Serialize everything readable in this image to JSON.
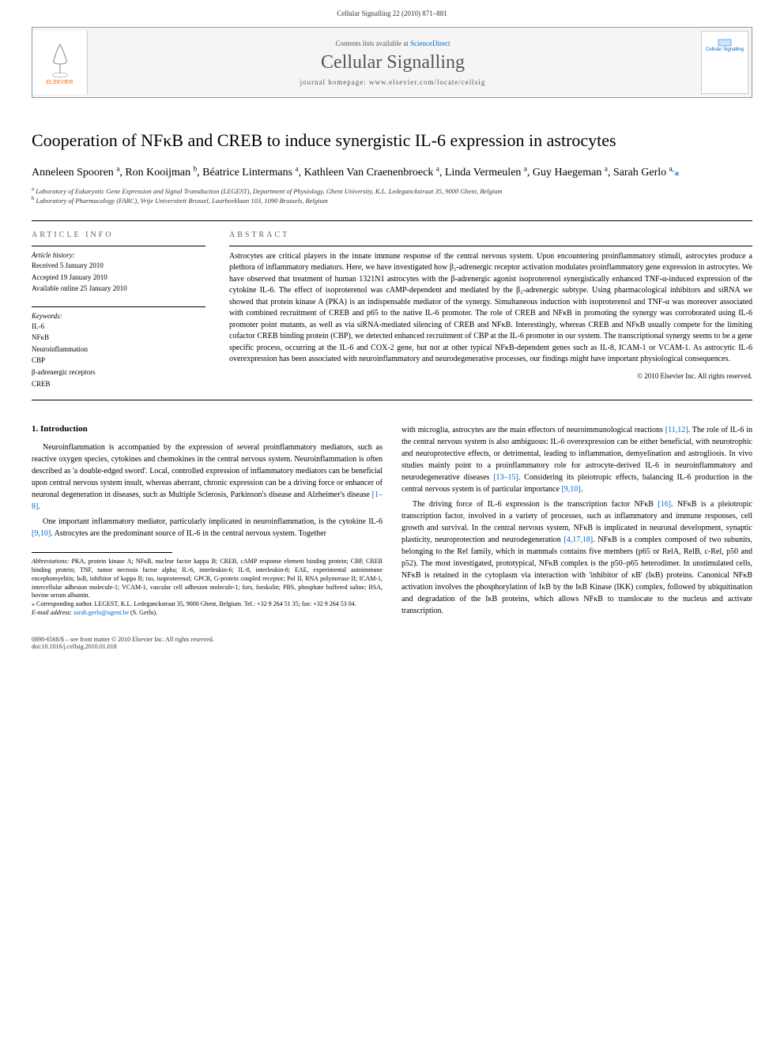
{
  "page_header": "Cellular Signalling 22 (2010) 871–881",
  "banner": {
    "elsevier": "ELSEVIER",
    "contents_prefix": "Contents lists available at ",
    "contents_link": "ScienceDirect",
    "journal_name": "Cellular Signalling",
    "homepage_prefix": "journal homepage: ",
    "homepage_url": "www.elsevier.com/locate/cellsig",
    "cover_label": "Cellular Signalling"
  },
  "title": "Cooperation of NFκB and CREB to induce synergistic IL-6 expression in astrocytes",
  "authors_html": "Anneleen Spooren <sup>a</sup>, Ron Kooijman <sup>b</sup>, Béatrice Lintermans <sup>a</sup>, Kathleen Van Craenenbroeck <sup>a</sup>, Linda Vermeulen <sup>a</sup>, Guy Haegeman <sup>a</sup>, Sarah Gerlo <sup>a,</sup>",
  "affiliations": {
    "a": "Laboratory of Eukaryotic Gene Expression and Signal Transduction (LEGEST), Department of Physiology, Ghent University, K.L. Ledeganckstraat 35, 9000 Ghent, Belgium",
    "b": "Laboratory of Pharmacology (FARC), Vrije Universiteit Brussel, Laarbeeklaan 103, 1090 Brussels, Belgium"
  },
  "article_info": {
    "heading": "ARTICLE INFO",
    "history_label": "Article history:",
    "received": "Received 5 January 2010",
    "accepted": "Accepted 19 January 2010",
    "online": "Available online 25 January 2010",
    "keywords_label": "Keywords:",
    "keywords": [
      "IL-6",
      "NFκB",
      "Neuroinflammation",
      "CBP",
      "β-adrenergic receptors",
      "CREB"
    ]
  },
  "abstract": {
    "heading": "ABSTRACT",
    "text": "Astrocytes are critical players in the innate immune response of the central nervous system. Upon encountering proinflammatory stimuli, astrocytes produce a plethora of inflammatory mediators. Here, we have investigated how β₂-adrenergic receptor activation modulates proinflammatory gene expression in astrocytes. We have observed that treatment of human 1321N1 astrocytes with the β-adrenergic agonist isoproterenol synergistically enhanced TNF-α-induced expression of the cytokine IL-6. The effect of isoproterenol was cAMP-dependent and mediated by the β₂-adrenergic subtype. Using pharmacological inhibitors and siRNA we showed that protein kinase A (PKA) is an indispensable mediator of the synergy. Simultaneous induction with isoproterenol and TNF-α was moreover associated with combined recruitment of CREB and p65 to the native IL-6 promoter. The role of CREB and NFκB in promoting the synergy was corroborated using IL-6 promoter point mutants, as well as via siRNA-mediated silencing of CREB and NFκB. Interestingly, whereas CREB and NFκB usually compete for the limiting cofactor CREB binding protein (CBP), we detected enhanced recruitment of CBP at the IL-6 promoter in our system. The transcriptional synergy seems to be a gene specific process, occurring at the IL-6 and COX-2 gene, but not at other typical NFκB-dependent genes such as IL-8, ICAM-1 or VCAM-1. As astrocytic IL-6 overexpression has been associated with neuroinflammatory and neurodegenerative processes, our findings might have important physiological consequences.",
    "copyright": "© 2010 Elsevier Inc. All rights reserved."
  },
  "body": {
    "section_heading": "1. Introduction",
    "col1_p1": "Neuroinflammation is accompanied by the expression of several proinflammatory mediators, such as reactive oxygen species, cytokines and chemokines in the central nervous system. Neuroinflammation is often described as 'a double-edged sword'. Local, controlled expression of inflammatory mediators can be beneficial upon central nervous system insult, whereas aberrant, chronic expression can be a driving force or enhancer of neuronal degeneration in diseases, such as Multiple Sclerosis, Parkinson's disease and Alzheimer's disease ",
    "col1_p1_ref": "[1–8]",
    "col1_p1_end": ".",
    "col1_p2": "One important inflammatory mediator, particularly implicated in neuroinflammation, is the cytokine IL-6 ",
    "col1_p2_ref": "[9,10]",
    "col1_p2_end": ". Astrocytes are the predominant source of IL-6 in the central nervous system. Together",
    "col2_p1": "with microglia, astrocytes are the main effectors of neuroimmunological reactions ",
    "col2_p1_ref1": "[11,12]",
    "col2_p1_mid": ". The role of IL-6 in the central nervous system is also ambiguous: IL-6 overexpression can be either beneficial, with neurotrophic and neuroprotective effects, or detrimental, leading to inflammation, demyelination and astrogliosis. In vivo studies mainly point to a proinflammatory role for astrocyte-derived IL-6 in neuroinflammatory and neurodegenerative diseases ",
    "col2_p1_ref2": "[13–15]",
    "col2_p1_mid2": ". Considering its pleiotropic effects, balancing IL-6 production in the central nervous system is of particular importance ",
    "col2_p1_ref3": "[9,10]",
    "col2_p1_end": ".",
    "col2_p2": "The driving force of IL-6 expression is the transcription factor NFκB ",
    "col2_p2_ref1": "[16]",
    "col2_p2_mid": ". NFκB is a pleiotropic transcription factor, involved in a variety of processes, such as inflammatory and immune responses, cell growth and survival. In the central nervous system, NFκB is implicated in neuronal development, synaptic plasticity, neuroprotection and neurodegeneration ",
    "col2_p2_ref2": "[4,17,18]",
    "col2_p2_end": ". NFκB is a complex composed of two subunits, belonging to the Rel family, which in mammals contains five members (p65 or RelA, RelB, c-Rel, p50 and p52). The most investigated, prototypical, NFκB complex is the p50–p65 heterodimer. In unstimulated cells, NFκB is retained in the cytoplasm via interaction with 'inhibitor of κB' (IκB) proteins. Canonical NFκB activation involves the phosphorylation of IκB by the IκB Kinase (IKK) complex, followed by ubiquitination and degradation of the IκB proteins, which allows NFκB to translocate to the nucleus and activate transcription."
  },
  "footnotes": {
    "abbrev_label": "Abbreviations:",
    "abbrev": " PKA, protein kinase A; NFκB, nuclear factor kappa B; CREB, cAMP response element binding protein; CBP, CREB binding protein; TNF, tumor necrosis factor alpha; IL-6, interleukin-6; IL-8, interleukin-8; EAE, experimental autoimmune encephomyelitis; IκB, inhibitor of kappa B; iso, isoproterenol; GPCR, G-protein coupled receptor; Pol II, RNA polymerase II; ICAM-1, intercellular adhesion molecule-1; VCAM-1, vascular cell adhesion molecule-1; fors, forskolin; PBS, phosphate buffered saline; BSA, bovine serum albumin.",
    "corr_marker": "⁎",
    "corr": " Corresponding author. LEGEST, K.L. Ledeganckstraat 35, 9000 Ghent, Belgium. Tel.: +32 9 264 51 35; fax: +32 9 264 53 04.",
    "email_label": "E-mail address:",
    "email": "sarah.gerlo@ugent.be",
    "email_suffix": " (S. Gerlo)."
  },
  "doi": {
    "line1": "0898-6568/$ – see front matter © 2010 Elsevier Inc. All rights reserved.",
    "line2": "doi:10.1016/j.cellsig.2010.01.018"
  }
}
